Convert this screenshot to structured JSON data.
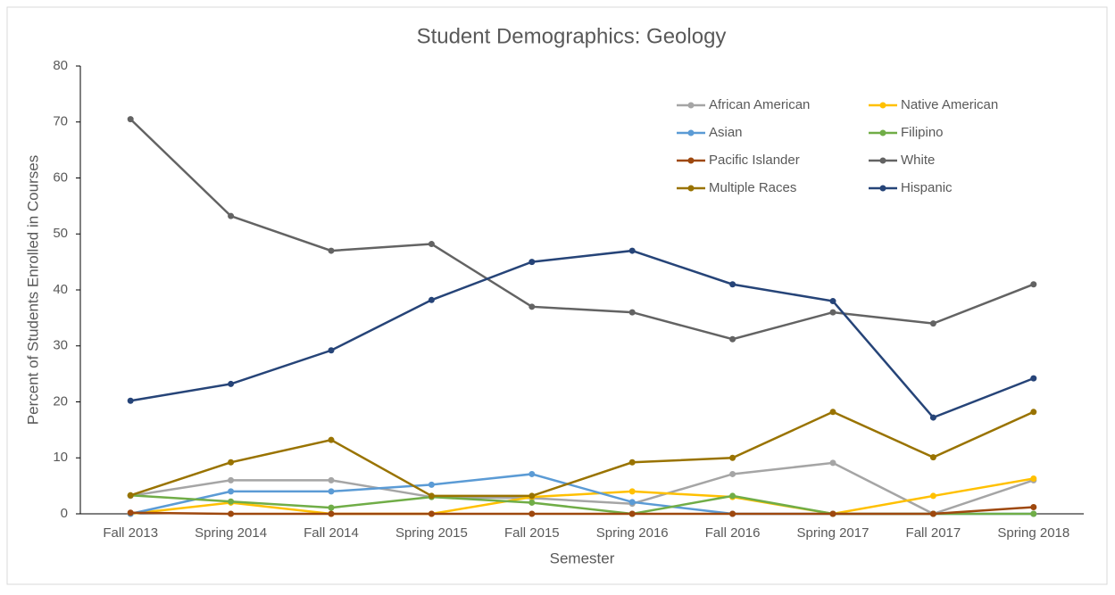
{
  "chart_data": {
    "type": "line",
    "title": "Student Demographics: Geology",
    "x_label": "Semester",
    "y_label": "Percent of Students Enrolled in Courses",
    "categories": [
      "Fall 2013",
      "Spring 2014",
      "Fall 2014",
      "Spring 2015",
      "Fall 2015",
      "Spring 2016",
      "Fall 2016",
      "Spring 2017",
      "Fall 2017",
      "Spring 2018"
    ],
    "series": [
      {
        "name": "African American",
        "color": "#a5a5a5",
        "values": [
          3.2,
          6,
          6,
          3,
          2.8,
          1.8,
          7.1,
          9.1,
          0,
          6
        ]
      },
      {
        "name": "Native American",
        "color": "#ffc000",
        "values": [
          0,
          2,
          0,
          0,
          3,
          4,
          3,
          0,
          3.2,
          6.3
        ]
      },
      {
        "name": "Asian",
        "color": "#5b9bd5",
        "values": [
          0,
          4,
          4,
          5.2,
          7.1,
          2.1,
          0,
          0,
          0,
          0
        ]
      },
      {
        "name": "Filipino",
        "color": "#70ad47",
        "values": [
          3.3,
          2.2,
          1.1,
          3,
          2,
          0,
          3.2,
          0,
          0,
          0
        ]
      },
      {
        "name": "Pacific Islander",
        "color": "#9e480e",
        "values": [
          0.2,
          0,
          0,
          0,
          0,
          0,
          0,
          0,
          0,
          1.2
        ]
      },
      {
        "name": "White",
        "color": "#636363",
        "values": [
          70.5,
          53.2,
          47,
          48.2,
          37,
          36,
          31.2,
          36,
          34,
          41
        ]
      },
      {
        "name": "Multiple Races",
        "color": "#997300",
        "values": [
          3.3,
          9.2,
          13.2,
          3.2,
          3.2,
          9.2,
          10,
          18.2,
          10.1,
          18.2
        ]
      },
      {
        "name": "Hispanic",
        "color": "#264478",
        "values": [
          20.2,
          23.2,
          29.2,
          38.2,
          45,
          47,
          41,
          38,
          17.2,
          24.2
        ]
      }
    ],
    "ylim": [
      0,
      80
    ],
    "yticks": [
      0,
      10,
      20,
      30,
      40,
      50,
      60,
      70,
      80
    ],
    "grid": false,
    "legend": "top-right"
  }
}
